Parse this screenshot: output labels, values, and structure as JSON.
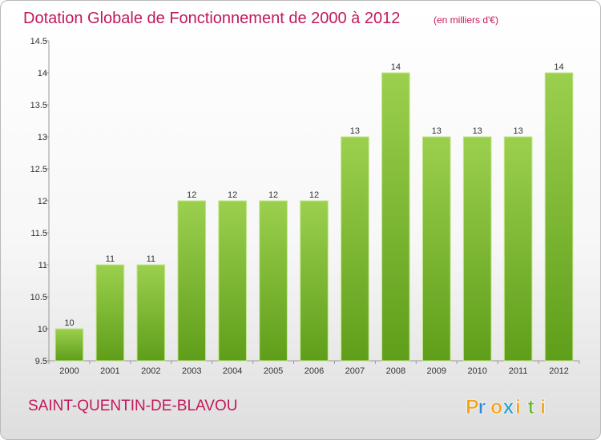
{
  "chart_data": {
    "type": "bar",
    "title": "Dotation Globale de Fonctionnement de 2000 à 2012",
    "subtitle": "(en milliers d'€)",
    "categories": [
      "2000",
      "2001",
      "2002",
      "2003",
      "2004",
      "2005",
      "2006",
      "2007",
      "2008",
      "2009",
      "2010",
      "2011",
      "2012"
    ],
    "values": [
      10,
      11,
      11,
      12,
      12,
      12,
      12,
      13,
      14,
      13,
      13,
      13,
      14
    ],
    "data_labels": [
      "10",
      "11",
      "11",
      "12",
      "12",
      "12",
      "12",
      "13",
      "14",
      "13",
      "13",
      "13",
      "14"
    ],
    "yticks": [
      9.5,
      10,
      10.5,
      11,
      11.5,
      12,
      12.5,
      13,
      13.5,
      14,
      14.5
    ],
    "ytick_labels": [
      "9.5",
      "10",
      "10.5",
      "11",
      "11.5",
      "12",
      "12.5",
      "13",
      "13.5",
      "14",
      "14.5"
    ],
    "ylim": [
      9.5,
      14.5
    ],
    "xlabel": "",
    "ylabel": "",
    "grid": false,
    "legend": "none"
  },
  "footer": {
    "commune": "SAINT-QUENTIN-DE-BLAVOU",
    "logo": "Proxiti"
  },
  "colors": {
    "title": "#c2185b",
    "bar_top": "#9bd04e",
    "bar_bottom": "#5f9e1a",
    "bar_edge": "#c3e58a",
    "axis": "#999999",
    "logo_letters": [
      "#f4a21b",
      "#2a8ad6",
      "#f4a21b",
      "#1f9fd0",
      "#f4a21b",
      "#6bb52e",
      "#f4a21b"
    ]
  }
}
